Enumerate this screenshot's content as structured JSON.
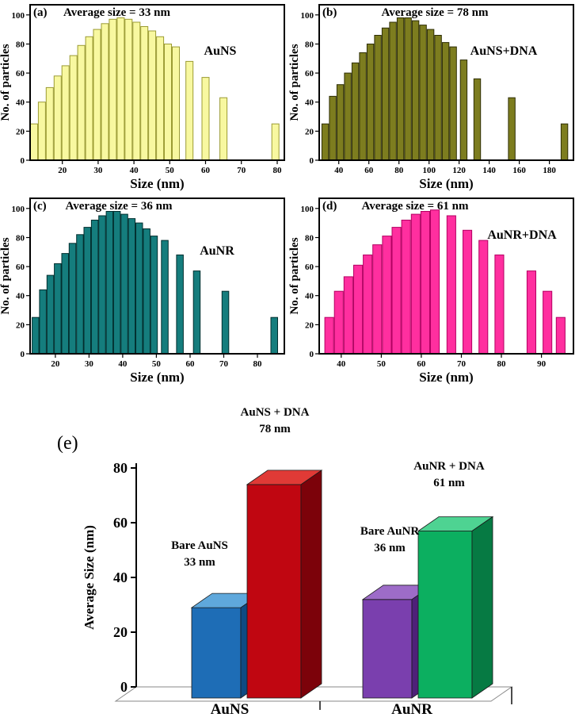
{
  "chart_data": [
    {
      "id": "a",
      "type": "bar",
      "subtype": "histogram",
      "letter": "(a)",
      "title": "Average size = 33 nm",
      "series_label": "AuNS",
      "xlabel": "Size (nm)",
      "ylabel": "No. of particles",
      "xlim": [
        11,
        82
      ],
      "ylim": [
        0,
        107
      ],
      "xticks": [
        20,
        30,
        40,
        50,
        60,
        70,
        80
      ],
      "yticks": [
        0,
        20,
        40,
        60,
        80,
        100
      ],
      "bar_width": 2.0,
      "bar_color": "#f8f8a0",
      "bar_border": "#9b9b33",
      "bars": [
        [
          12.1,
          25
        ],
        [
          14.3,
          40
        ],
        [
          16.5,
          50
        ],
        [
          18.7,
          58
        ],
        [
          20.9,
          65
        ],
        [
          23.1,
          72
        ],
        [
          25.3,
          79
        ],
        [
          27.5,
          85
        ],
        [
          29.7,
          90
        ],
        [
          31.9,
          94
        ],
        [
          34.1,
          97
        ],
        [
          36.3,
          98
        ],
        [
          38.5,
          97
        ],
        [
          40.7,
          95
        ],
        [
          42.9,
          92
        ],
        [
          45.1,
          89
        ],
        [
          47.3,
          85
        ],
        [
          49.5,
          80
        ],
        [
          51.7,
          78
        ],
        [
          55.5,
          68
        ],
        [
          60,
          57
        ],
        [
          65,
          43
        ],
        [
          79.5,
          25
        ]
      ]
    },
    {
      "id": "b",
      "type": "bar",
      "subtype": "histogram",
      "letter": "(b)",
      "title": "Average size = 78 nm",
      "series_label": "AuNS+DNA",
      "xlabel": "Size (nm)",
      "ylabel": "No. of particles",
      "xlim": [
        27,
        196
      ],
      "ylim": [
        0,
        107
      ],
      "xticks": [
        40,
        60,
        80,
        100,
        120,
        140,
        160,
        180
      ],
      "yticks": [
        0,
        20,
        40,
        60,
        80,
        100
      ],
      "bar_width": 4.4,
      "bar_color": "#7d7d1f",
      "bar_border": "#2e2e05",
      "bars": [
        [
          31,
          25
        ],
        [
          36,
          44
        ],
        [
          41,
          52
        ],
        [
          46,
          60
        ],
        [
          51,
          67
        ],
        [
          56,
          74
        ],
        [
          61,
          80
        ],
        [
          66,
          86
        ],
        [
          71,
          91
        ],
        [
          76,
          95
        ],
        [
          81,
          98
        ],
        [
          86,
          98
        ],
        [
          91,
          96
        ],
        [
          96,
          93
        ],
        [
          101,
          90
        ],
        [
          106,
          86
        ],
        [
          111,
          81
        ],
        [
          116,
          78
        ],
        [
          123,
          69
        ],
        [
          132,
          56
        ],
        [
          155,
          43
        ],
        [
          190,
          25
        ]
      ]
    },
    {
      "id": "c",
      "type": "bar",
      "subtype": "histogram",
      "letter": "(c)",
      "title": "Average size = 36 nm",
      "series_label": "AuNR",
      "xlabel": "Size (nm)",
      "ylabel": "No. of particles",
      "xlim": [
        12.5,
        88
      ],
      "ylim": [
        0,
        107
      ],
      "xticks": [
        20,
        30,
        40,
        50,
        60,
        70,
        80
      ],
      "yticks": [
        0,
        20,
        40,
        60,
        80,
        100
      ],
      "bar_width": 2.0,
      "bar_color": "#157d7d",
      "bar_border": "#022e2e",
      "bars": [
        [
          14.1,
          25
        ],
        [
          16.3,
          44
        ],
        [
          18.5,
          54
        ],
        [
          20.7,
          62
        ],
        [
          22.9,
          69
        ],
        [
          25.1,
          76
        ],
        [
          27.3,
          82
        ],
        [
          29.5,
          87
        ],
        [
          31.7,
          92
        ],
        [
          33.9,
          95
        ],
        [
          36.1,
          98
        ],
        [
          38.3,
          98
        ],
        [
          40.5,
          96
        ],
        [
          42.7,
          93
        ],
        [
          44.9,
          90
        ],
        [
          47.1,
          86
        ],
        [
          49.3,
          81
        ],
        [
          52.5,
          78
        ],
        [
          57,
          68
        ],
        [
          62,
          57
        ],
        [
          70.5,
          43
        ],
        [
          85,
          25
        ]
      ]
    },
    {
      "id": "d",
      "type": "bar",
      "subtype": "histogram",
      "letter": "(d)",
      "title": "Average size = 61 nm",
      "series_label": "AuNR+DNA",
      "xlabel": "Size (nm)",
      "ylabel": "No. of particles",
      "xlim": [
        34.5,
        98
      ],
      "ylim": [
        0,
        107
      ],
      "xticks": [
        40,
        50,
        60,
        70,
        80,
        90
      ],
      "yticks": [
        0,
        20,
        40,
        60,
        80,
        100
      ],
      "bar_width": 2.2,
      "bar_color": "#ff2f9f",
      "bar_border": "#b30062",
      "bars": [
        [
          37,
          25
        ],
        [
          39.4,
          43
        ],
        [
          41.8,
          53
        ],
        [
          44.2,
          61
        ],
        [
          46.6,
          68
        ],
        [
          49,
          75
        ],
        [
          51.4,
          81
        ],
        [
          53.8,
          87
        ],
        [
          56.2,
          92
        ],
        [
          58.6,
          96
        ],
        [
          61,
          98
        ],
        [
          63.4,
          99
        ],
        [
          67.5,
          95
        ],
        [
          71.5,
          85
        ],
        [
          75.5,
          78
        ],
        [
          79.5,
          68
        ],
        [
          87.5,
          57
        ],
        [
          91.5,
          43
        ],
        [
          94.8,
          25
        ]
      ]
    },
    {
      "id": "e",
      "type": "bar",
      "subtype": "3d-bar",
      "letter": "(e)",
      "ylabel": "Average Size (nm)",
      "yticks": [
        0,
        20,
        40,
        60,
        80
      ],
      "ylim": [
        0,
        88
      ],
      "categories": [
        "AuNS",
        "AuNR"
      ],
      "bars": [
        {
          "name": "Bare AuNS",
          "value": 33,
          "value_label": "33 nm",
          "front": "#1e6db6",
          "top": "#5fa8dc",
          "side": "#0f4a82"
        },
        {
          "name": "AuNS + DNA",
          "value": 78,
          "value_label": "78 nm",
          "front": "#c00611",
          "top": "#e03a36",
          "side": "#7c020a"
        },
        {
          "name": "Bare AuNR",
          "value": 36,
          "value_label": "36 nm",
          "front": "#7a3fae",
          "top": "#9d6cc8",
          "side": "#4e2079"
        },
        {
          "name": "AuNR + DNA",
          "value": 61,
          "value_label": "61 nm",
          "front": "#0caf60",
          "top": "#4ed392",
          "side": "#067a43"
        }
      ]
    }
  ]
}
